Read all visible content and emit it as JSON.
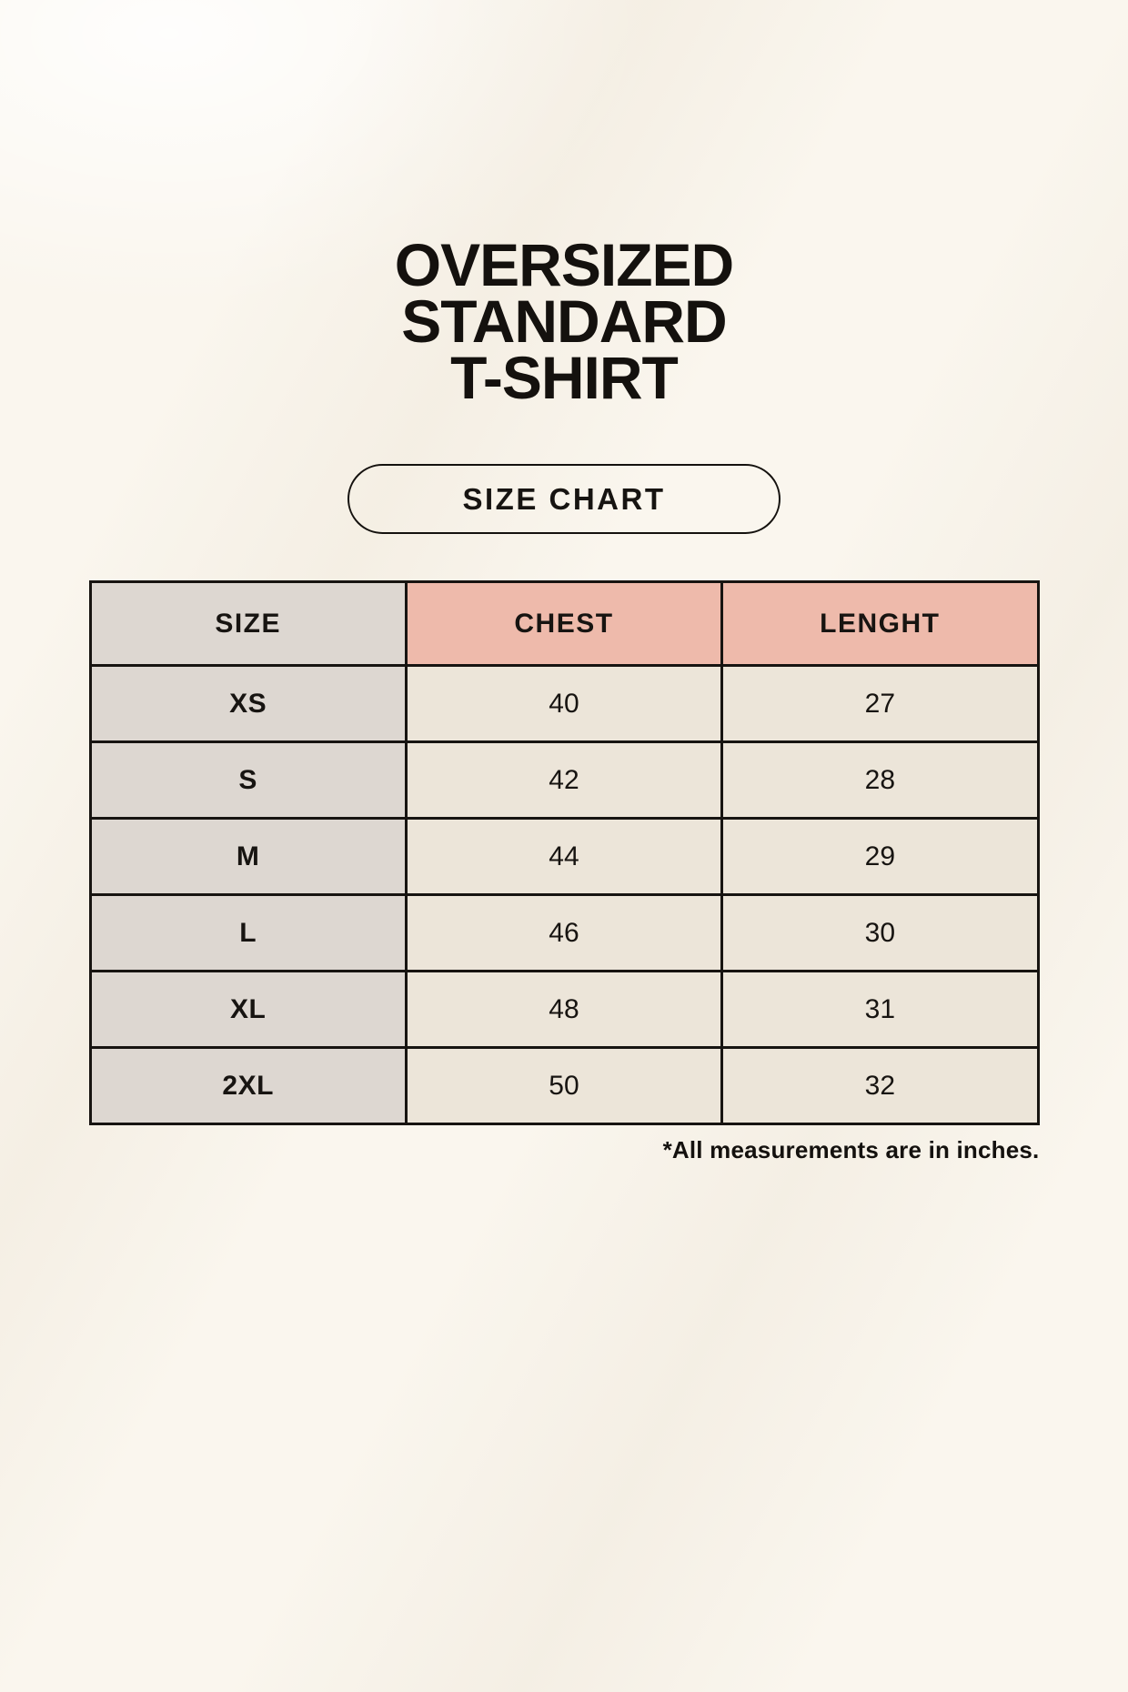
{
  "header": {
    "title_lines": [
      "OVERSIZED",
      "STANDARD",
      "T-SHIRT"
    ],
    "badge_label": "SIZE CHART"
  },
  "chart_data": {
    "type": "table",
    "title": "Oversized Standard T-Shirt Size Chart",
    "columns": [
      "SIZE",
      "CHEST",
      "LENGHT"
    ],
    "units": "inches",
    "rows": [
      [
        "XS",
        40,
        27
      ],
      [
        "S",
        42,
        28
      ],
      [
        "M",
        44,
        29
      ],
      [
        "L",
        46,
        30
      ],
      [
        "XL",
        48,
        31
      ],
      [
        "2XL",
        50,
        32
      ]
    ]
  },
  "footnote": "*All measurements are in inches.",
  "colors": {
    "background": "#faf6ee",
    "size_column_bg": "#ddd7d1",
    "measure_header_bg": "#eebaab",
    "data_cell_bg": "#ece5d9",
    "border": "#171411",
    "text": "#14110e"
  }
}
